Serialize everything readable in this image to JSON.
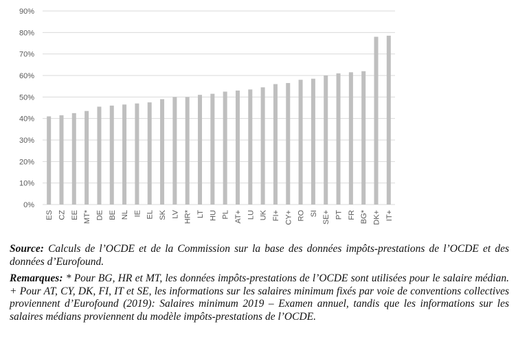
{
  "chart_data": {
    "type": "bar",
    "categories": [
      "ES",
      "CZ",
      "EE",
      "MT*",
      "DE",
      "BE",
      "NL",
      "IE",
      "EL",
      "SK",
      "LV",
      "HR*",
      "LT",
      "HU",
      "PL",
      "AT+",
      "LU",
      "UK",
      "FI+",
      "CY+",
      "RO",
      "SI",
      "SE+",
      "PT",
      "FR",
      "BG*",
      "DK+",
      "IT+"
    ],
    "values": [
      41,
      41.5,
      42.5,
      43.5,
      45.5,
      46,
      46.5,
      47,
      47.5,
      49,
      50,
      50,
      51,
      51.5,
      52.5,
      53,
      53.5,
      54.5,
      56,
      56.5,
      58,
      58.5,
      60,
      61,
      61.5,
      62,
      78,
      78.5
    ],
    "yticks": [
      "0%",
      "10%",
      "20%",
      "30%",
      "40%",
      "50%",
      "60%",
      "70%",
      "80%",
      "90%"
    ],
    "ylim": [
      0,
      90
    ],
    "grid": true,
    "bar_color": "#bfbfbf",
    "grid_color": "#d9d9d9",
    "title": "",
    "xlabel": "",
    "ylabel": ""
  },
  "notes": {
    "source_label": "Source:",
    "source_text": " Calculs de l’OCDE et de la Commission sur la base des données impôts-prestations de l’OCDE et des données d’Eurofound.",
    "remarks_label": "Remarques:",
    "remarks_text": " * Pour BG, HR et MT, les données impôts-prestations  de l’OCDE sont utilisées pour le salaire médian. + Pour AT, CY, DK, FI, IT et SE, les informations sur les salaires minimum fixés par voie de conventions collectives proviennent d’Eurofound (2019): Salaires minimum 2019 – Examen annuel, tandis que les informations sur les salaires médians proviennent du modèle impôts-prestations de l’OCDE."
  }
}
